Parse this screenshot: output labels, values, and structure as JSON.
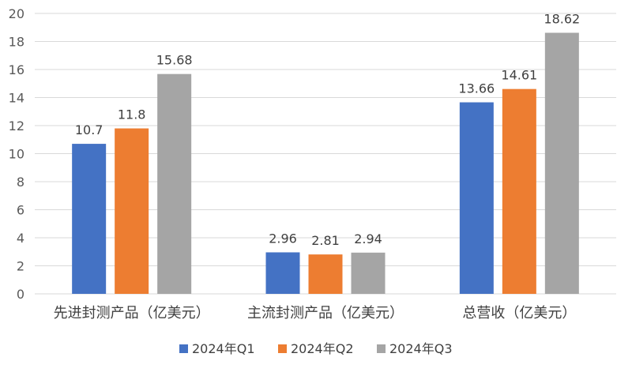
{
  "chart_data": {
    "type": "bar",
    "categories": [
      "先进封测产品（亿美元）",
      "主流封测产品（亿美元）",
      "总营收（亿美元）"
    ],
    "series": [
      {
        "name": "2024年Q1",
        "values": [
          10.7,
          2.96,
          13.66
        ],
        "color": "#4472C4"
      },
      {
        "name": "2024年Q2",
        "values": [
          11.8,
          2.81,
          14.61
        ],
        "color": "#ED7D31"
      },
      {
        "name": "2024年Q3",
        "values": [
          15.68,
          2.94,
          18.62
        ],
        "color": "#A5A5A5"
      }
    ],
    "ylim": [
      0,
      20
    ],
    "yticks": [
      0,
      2,
      4,
      6,
      8,
      10,
      12,
      14,
      16,
      18,
      20
    ],
    "grid": true,
    "legend_position": "bottom",
    "gridline_color": "#D9D9D9"
  }
}
